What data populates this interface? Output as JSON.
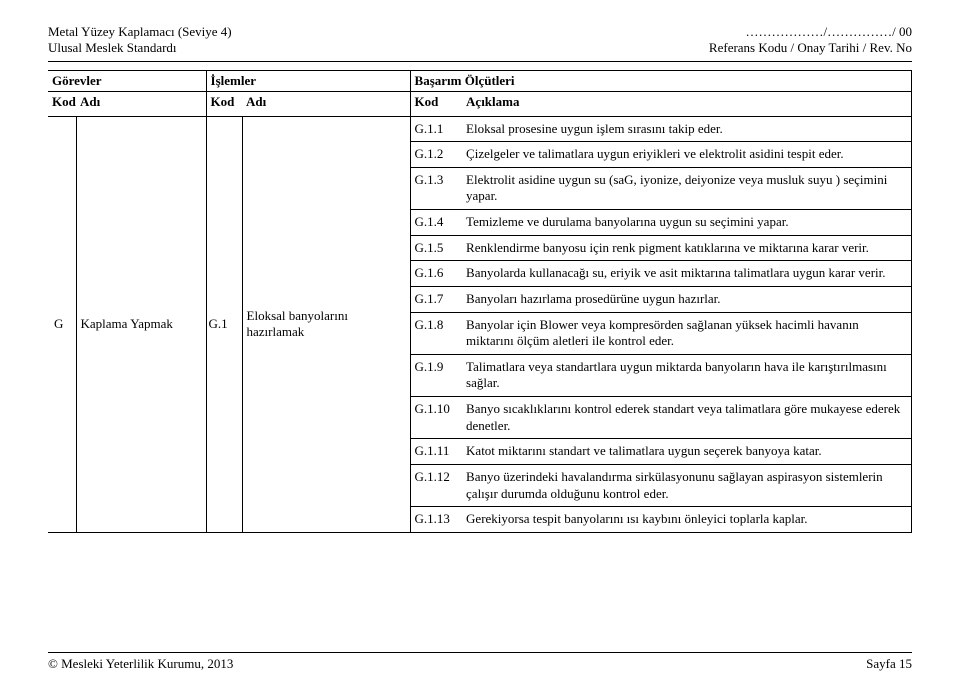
{
  "header": {
    "top_left_line1": "Metal Yüzey Kaplamacı (Seviye 4)",
    "top_left_line2": "Ulusal Meslek Standardı",
    "top_right_line1": "………………/……………/ 00",
    "top_right_line2": "Referans Kodu / Onay Tarihi / Rev. No"
  },
  "table_headers": {
    "gorevler": "Görevler",
    "islemler": "İşlemler",
    "basarim": "Başarım Ölçütleri",
    "kod": "Kod",
    "adi": "Adı",
    "aciklama": "Açıklama"
  },
  "task": {
    "kod": "G",
    "adi": "Kaplama Yapmak"
  },
  "operation": {
    "kod": "G.1",
    "adi": "Eloksal banyolarını hazırlamak"
  },
  "rows": [
    {
      "kod": "G.1.1",
      "aciklama": "Eloksal prosesine uygun işlem sırasını takip eder."
    },
    {
      "kod": "G.1.2",
      "aciklama": "Çizelgeler ve talimatlara uygun eriyikleri ve elektrolit asidini tespit eder."
    },
    {
      "kod": "G.1.3",
      "aciklama": "Elektrolit asidine uygun su (saG, iyonize, deiyonize veya musluk suyu ) seçimini yapar."
    },
    {
      "kod": "G.1.4",
      "aciklama": "Temizleme ve durulama banyolarına uygun su seçimini yapar."
    },
    {
      "kod": "G.1.5",
      "aciklama": "Renklendirme banyosu için renk pigment katıklarına ve miktarına karar verir."
    },
    {
      "kod": "G.1.6",
      "aciklama": "Banyolarda kullanacağı su, eriyik ve asit miktarına talimatlara uygun karar verir."
    },
    {
      "kod": "G.1.7",
      "aciklama": "Banyoları hazırlama prosedürüne uygun hazırlar."
    },
    {
      "kod": "G.1.8",
      "aciklama": "Banyolar için Blower veya kompresörden sağlanan yüksek hacimli havanın miktarını ölçüm aletleri ile kontrol eder."
    },
    {
      "kod": "G.1.9",
      "aciklama": "Talimatlara veya standartlara uygun miktarda banyoların hava ile karıştırılmasını sağlar."
    },
    {
      "kod": "G.1.10",
      "aciklama": "Banyo sıcaklıklarını kontrol ederek standart veya talimatlara göre mukayese ederek denetler."
    },
    {
      "kod": "G.1.11",
      "aciklama": "Katot miktarını standart ve talimatlara uygun seçerek banyoya katar."
    },
    {
      "kod": "G.1.12",
      "aciklama": "Banyo üzerindeki havalandırma sirkülasyonunu sağlayan aspirasyon sistemlerin çalışır durumda olduğunu kontrol eder."
    },
    {
      "kod": "G.1.13",
      "aciklama": "Gerekiyorsa tespit banyolarını ısı kaybını önleyici toplarla kaplar."
    }
  ],
  "footer": {
    "left": "© Mesleki Yeterlilik Kurumu, 2013",
    "right": "Sayfa 15"
  },
  "col_widths": {
    "c1": "28px",
    "c2": "130px",
    "c3": "36px",
    "c4": "168px",
    "c5": "52px",
    "c6": "auto"
  }
}
